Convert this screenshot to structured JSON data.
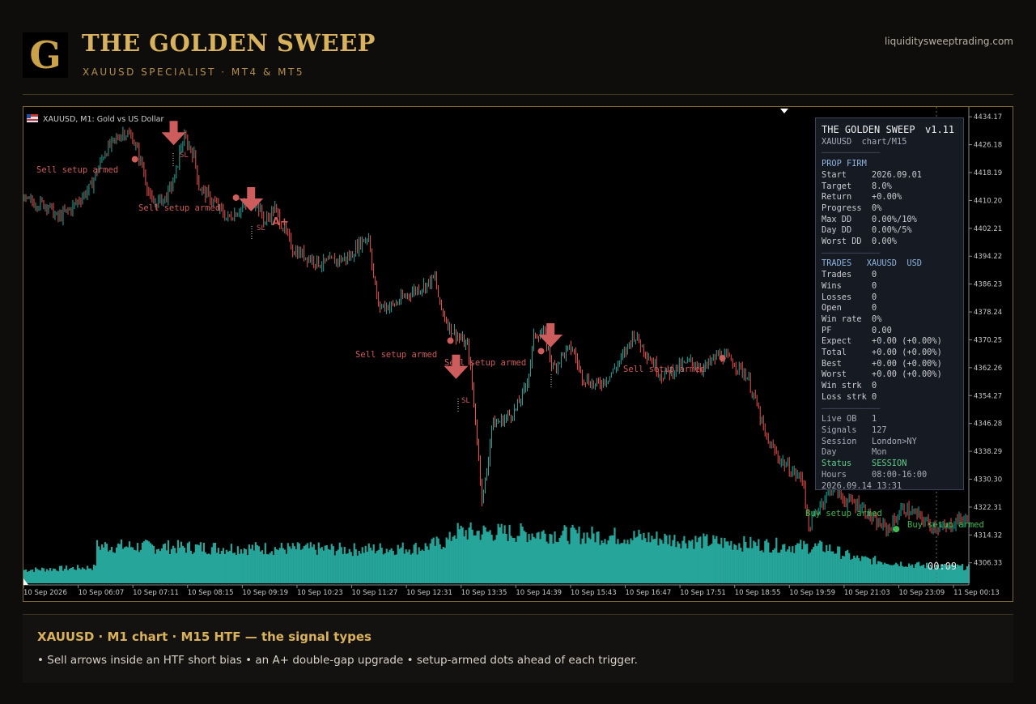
{
  "header": {
    "logo_letter": "G",
    "title": "THE GOLDEN SWEEP",
    "subtitle": "XAUUSD SPECIALIST · MT4 & MT5",
    "site": "liquiditysweeptrading.com"
  },
  "chart": {
    "symbol_label": "XAUUSD, M1:  Gold vs US Dollar",
    "timer": "00:09",
    "annotations": {
      "sell_armed": "Sell setup armed",
      "buy_armed": "Buy setup armed",
      "sl": "SL",
      "a_plus": "A+"
    },
    "colors": {
      "bull": "#26a69a",
      "bear": "#ef5350",
      "volume": "#26a69a",
      "signal": "#cd5c5c",
      "buy": "#3fb950"
    }
  },
  "chart_data": {
    "type": "candlestick",
    "symbol": "XAUUSD",
    "timeframe": "M1",
    "ylim": [
      4300.0,
      4437.0
    ],
    "y_ticks": [
      "4434.17",
      "4426.18",
      "4418.19",
      "4410.20",
      "4402.21",
      "4394.22",
      "4386.23",
      "4378.24",
      "4370.25",
      "4362.26",
      "4354.27",
      "4346.28",
      "4338.29",
      "4330.30",
      "4322.31",
      "4314.32",
      "4306.33"
    ],
    "x_ticks": [
      "10 Sep 2026",
      "10 Sep 06:07",
      "10 Sep 07:11",
      "10 Sep 08:15",
      "10 Sep 09:19",
      "10 Sep 10:23",
      "10 Sep 11:27",
      "10 Sep 12:31",
      "10 Sep 13:35",
      "10 Sep 14:39",
      "10 Sep 15:43",
      "10 Sep 16:47",
      "10 Sep 17:51",
      "10 Sep 18:55",
      "10 Sep 19:59",
      "10 Sep 21:03",
      "10 Sep 23:09",
      "11 Sep 00:13"
    ],
    "price_path": [
      {
        "t": 0.0,
        "p": 4410
      },
      {
        "t": 0.025,
        "p": 4409
      },
      {
        "t": 0.035,
        "p": 4405
      },
      {
        "t": 0.05,
        "p": 4408
      },
      {
        "t": 0.07,
        "p": 4414
      },
      {
        "t": 0.085,
        "p": 4424
      },
      {
        "t": 0.105,
        "p": 4430
      },
      {
        "t": 0.115,
        "p": 4428
      },
      {
        "t": 0.125,
        "p": 4420
      },
      {
        "t": 0.135,
        "p": 4409
      },
      {
        "t": 0.15,
        "p": 4411
      },
      {
        "t": 0.16,
        "p": 4417
      },
      {
        "t": 0.165,
        "p": 4425
      },
      {
        "t": 0.17,
        "p": 4428
      },
      {
        "t": 0.18,
        "p": 4423
      },
      {
        "t": 0.185,
        "p": 4414
      },
      {
        "t": 0.2,
        "p": 4410
      },
      {
        "t": 0.215,
        "p": 4405
      },
      {
        "t": 0.23,
        "p": 4408
      },
      {
        "t": 0.245,
        "p": 4410
      },
      {
        "t": 0.255,
        "p": 4404
      },
      {
        "t": 0.265,
        "p": 4408
      },
      {
        "t": 0.275,
        "p": 4402
      },
      {
        "t": 0.285,
        "p": 4396
      },
      {
        "t": 0.3,
        "p": 4394
      },
      {
        "t": 0.315,
        "p": 4392
      },
      {
        "t": 0.33,
        "p": 4393
      },
      {
        "t": 0.345,
        "p": 4394
      },
      {
        "t": 0.355,
        "p": 4398
      },
      {
        "t": 0.365,
        "p": 4400
      },
      {
        "t": 0.37,
        "p": 4388
      },
      {
        "t": 0.375,
        "p": 4380
      },
      {
        "t": 0.39,
        "p": 4380
      },
      {
        "t": 0.41,
        "p": 4384
      },
      {
        "t": 0.425,
        "p": 4386
      },
      {
        "t": 0.435,
        "p": 4388
      },
      {
        "t": 0.44,
        "p": 4380
      },
      {
        "t": 0.45,
        "p": 4374
      },
      {
        "t": 0.46,
        "p": 4371
      },
      {
        "t": 0.47,
        "p": 4368
      },
      {
        "t": 0.475,
        "p": 4355
      },
      {
        "t": 0.48,
        "p": 4340
      },
      {
        "t": 0.485,
        "p": 4324
      },
      {
        "t": 0.49,
        "p": 4333
      },
      {
        "t": 0.495,
        "p": 4346
      },
      {
        "t": 0.505,
        "p": 4347
      },
      {
        "t": 0.52,
        "p": 4350
      },
      {
        "t": 0.53,
        "p": 4356
      },
      {
        "t": 0.535,
        "p": 4362
      },
      {
        "t": 0.54,
        "p": 4372
      },
      {
        "t": 0.55,
        "p": 4372
      },
      {
        "t": 0.56,
        "p": 4362
      },
      {
        "t": 0.57,
        "p": 4366
      },
      {
        "t": 0.58,
        "p": 4368
      },
      {
        "t": 0.59,
        "p": 4360
      },
      {
        "t": 0.605,
        "p": 4357
      },
      {
        "t": 0.62,
        "p": 4360
      },
      {
        "t": 0.635,
        "p": 4366
      },
      {
        "t": 0.645,
        "p": 4372
      },
      {
        "t": 0.66,
        "p": 4366
      },
      {
        "t": 0.675,
        "p": 4360
      },
      {
        "t": 0.69,
        "p": 4362
      },
      {
        "t": 0.705,
        "p": 4364
      },
      {
        "t": 0.72,
        "p": 4362
      },
      {
        "t": 0.735,
        "p": 4366
      },
      {
        "t": 0.75,
        "p": 4364
      },
      {
        "t": 0.765,
        "p": 4360
      },
      {
        "t": 0.775,
        "p": 4352
      },
      {
        "t": 0.785,
        "p": 4342
      },
      {
        "t": 0.8,
        "p": 4336
      },
      {
        "t": 0.815,
        "p": 4332
      },
      {
        "t": 0.825,
        "p": 4330
      },
      {
        "t": 0.83,
        "p": 4316
      },
      {
        "t": 0.84,
        "p": 4322
      },
      {
        "t": 0.855,
        "p": 4328
      },
      {
        "t": 0.87,
        "p": 4324
      },
      {
        "t": 0.885,
        "p": 4323
      },
      {
        "t": 0.9,
        "p": 4318
      },
      {
        "t": 0.915,
        "p": 4316
      },
      {
        "t": 0.93,
        "p": 4322
      },
      {
        "t": 0.945,
        "p": 4320
      },
      {
        "t": 0.96,
        "p": 4317
      },
      {
        "t": 0.975,
        "p": 4316
      },
      {
        "t": 0.99,
        "p": 4319
      },
      {
        "t": 1.0,
        "p": 4318
      }
    ],
    "volume_path": [
      {
        "t": 0.0,
        "v": 0.15
      },
      {
        "t": 0.075,
        "v": 0.18
      },
      {
        "t": 0.077,
        "v": 0.42
      },
      {
        "t": 0.2,
        "v": 0.4
      },
      {
        "t": 0.35,
        "v": 0.38
      },
      {
        "t": 0.42,
        "v": 0.4
      },
      {
        "t": 0.45,
        "v": 0.48
      },
      {
        "t": 0.455,
        "v": 0.58
      },
      {
        "t": 0.55,
        "v": 0.56
      },
      {
        "t": 0.65,
        "v": 0.52
      },
      {
        "t": 0.75,
        "v": 0.45
      },
      {
        "t": 0.85,
        "v": 0.4
      },
      {
        "t": 0.88,
        "v": 0.28
      },
      {
        "t": 0.95,
        "v": 0.2
      },
      {
        "t": 1.0,
        "v": 0.18
      }
    ],
    "signals": [
      {
        "kind": "sell_arrow",
        "t": 0.159,
        "p": 4433
      },
      {
        "kind": "sell_arrow",
        "t": 0.241,
        "p": 4414
      },
      {
        "kind": "sell_arrow",
        "t": 0.458,
        "p": 4366
      },
      {
        "kind": "sell_arrow",
        "t": 0.558,
        "p": 4375
      },
      {
        "kind": "sell_dot",
        "t": 0.118,
        "p": 4422
      },
      {
        "kind": "sell_dot",
        "t": 0.225,
        "p": 4411
      },
      {
        "kind": "sell_dot",
        "t": 0.452,
        "p": 4370
      },
      {
        "kind": "sell_dot",
        "t": 0.548,
        "p": 4367
      },
      {
        "kind": "sell_dot",
        "t": 0.74,
        "p": 4365
      },
      {
        "kind": "buy_dot",
        "t": 0.924,
        "p": 4316
      }
    ]
  },
  "panel": {
    "title": "THE GOLDEN SWEEP",
    "version": "v1.11",
    "subtitle": "XAUUSD  chart/M15",
    "prop_heading": "PROP FIRM",
    "prop_rows": [
      "Start     2026.09.01",
      "Target    8.0%",
      "Return    +0.00%",
      "Progress  0%",
      "Max DD    0.00%/10%",
      "Day DD    0.00%/5%",
      "Worst DD  0.00%"
    ],
    "trades_heading": "TRADES   XAUUSD  USD",
    "trade_rows": [
      "Trades    0",
      "Wins      0",
      "Losses    0",
      "Open      0",
      "Win rate  0%",
      "PF        0.00",
      "Expect    +0.00 (+0.00%)",
      "Total     +0.00 (+0.00%)",
      "Best      +0.00 (+0.00%)",
      "Worst     +0.00 (+0.00%)",
      "Win strk  0",
      "Loss strk 0"
    ],
    "info_rows": [
      "Live OB   1",
      "Signals   127",
      "Session   London>NY",
      "Day       Mon"
    ],
    "status_label": "Status    SESSION",
    "hours": "Hours     08:00-16:00",
    "timestamp": "2026.09.14 13:31"
  },
  "footer": {
    "title": "XAUUSD · M1 chart · M15 HTF — the signal types",
    "text": "• Sell arrows inside an HTF short bias • an A+ double-gap upgrade • setup-armed dots ahead of each trigger."
  }
}
